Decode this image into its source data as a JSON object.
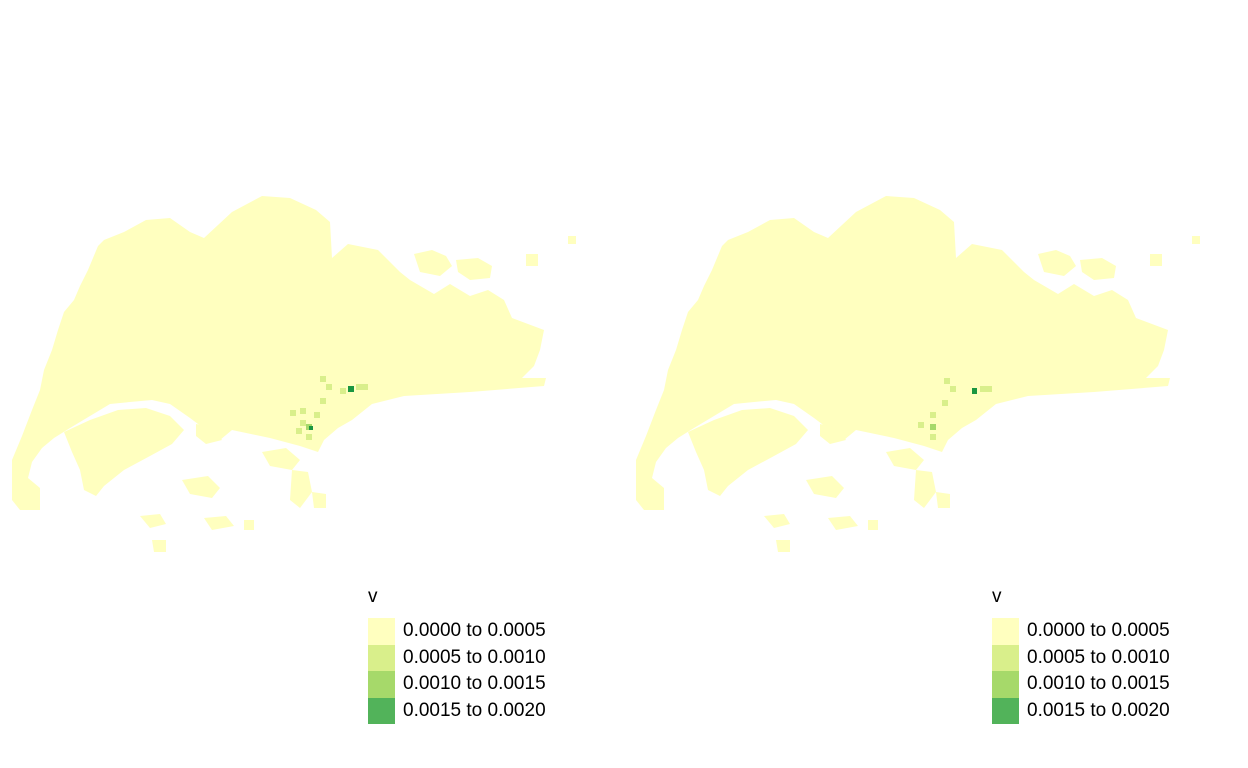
{
  "panels": [
    {
      "legend": {
        "title": "v",
        "entries": [
          {
            "label": "0.0000 to 0.0005",
            "color": "#ffffbf"
          },
          {
            "label": "0.0005 to 0.0010",
            "color": "#d9ef8b"
          },
          {
            "label": "0.0010 to 0.0015",
            "color": "#a6d96a"
          },
          {
            "label": "0.0015 to 0.0020",
            "color": "#52b35a"
          }
        ]
      }
    },
    {
      "legend": {
        "title": "v",
        "entries": [
          {
            "label": "0.0000 to 0.0005",
            "color": "#ffffbf"
          },
          {
            "label": "0.0005 to 0.0010",
            "color": "#d9ef8b"
          },
          {
            "label": "0.0010 to 0.0015",
            "color": "#a6d96a"
          },
          {
            "label": "0.0015 to 0.0020",
            "color": "#52b35a"
          }
        ]
      }
    }
  ],
  "colors": {
    "land": "#ffffbf",
    "class2": "#d9ef8b",
    "class3": "#a6d96a",
    "class4": "#52b35a",
    "class5": "#1a9641"
  }
}
